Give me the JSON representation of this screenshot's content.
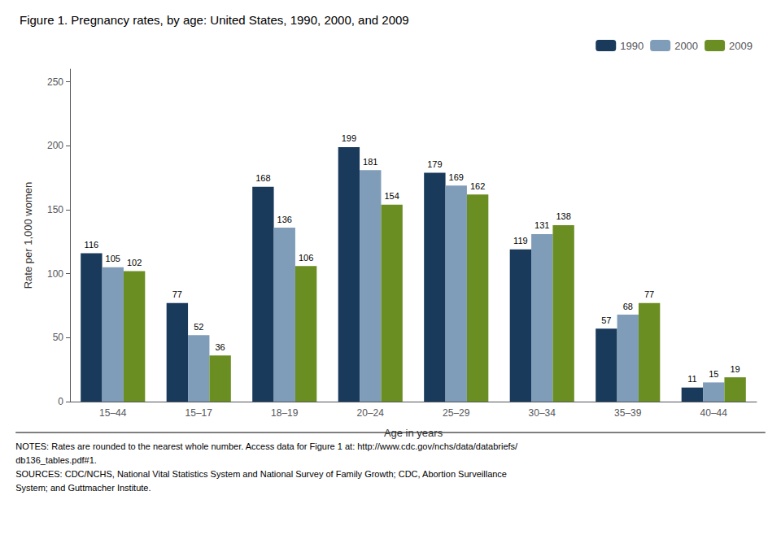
{
  "chart_data": {
    "type": "bar",
    "title": "Figure 1. Pregnancy rates, by age: United States, 1990, 2000, and 2009",
    "categories": [
      "15–44",
      "15–17",
      "18–19",
      "20–24",
      "25–29",
      "30–34",
      "35–39",
      "40–44"
    ],
    "series": [
      {
        "name": "1990",
        "color": "#1a3a5c",
        "values": [
          116,
          77,
          168,
          199,
          179,
          119,
          57,
          11
        ]
      },
      {
        "name": "2000",
        "color": "#7f9db9",
        "values": [
          105,
          52,
          136,
          181,
          169,
          131,
          68,
          15
        ]
      },
      {
        "name": "2009",
        "color": "#6b8e23",
        "values": [
          102,
          36,
          106,
          154,
          162,
          138,
          77,
          19
        ]
      }
    ],
    "x_label": "Age in years",
    "y_label": "Rate per 1,000 women",
    "ylim": [
      0,
      260
    ],
    "yticks": [
      0,
      50,
      100,
      150,
      200,
      250
    ],
    "grid": false,
    "legend": "upper right",
    "data_labels": true,
    "annotations": [
      "NOTES: Rates are rounded to the nearest whole number. Access data for Figure 1 at: http://www.cdc.gov/nchs/data/databriefs/",
      "db136_tables.pdf#1.",
      "SOURCES: CDC/NCHS, National Vital Statistics System and National Survey of Family Growth; CDC, Abortion Surveillance",
      "System; and Guttmacher Institute."
    ]
  }
}
